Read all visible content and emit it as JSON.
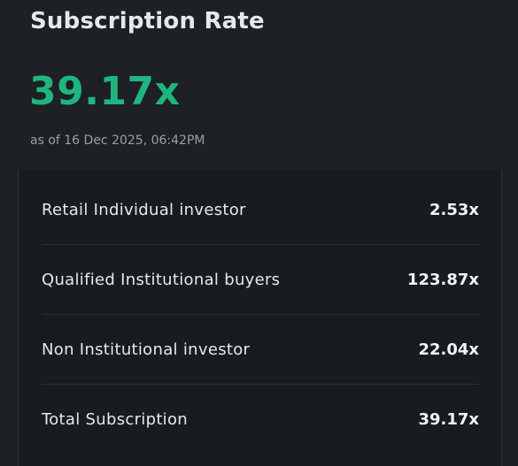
{
  "header": {
    "title": "Subscription Rate",
    "rate": "39.17x",
    "as_of": "as of 16 Dec 2025, 06:42PM"
  },
  "rows": [
    {
      "label": "Retail Individual investor",
      "value": "2.53x"
    },
    {
      "label": "Qualified Institutional buyers",
      "value": "123.87x"
    },
    {
      "label": "Non Institutional investor",
      "value": "22.04x"
    },
    {
      "label": "Total Subscription",
      "value": "39.17x"
    }
  ],
  "colors": {
    "accent": "#1fb57f",
    "background": "#1d2025"
  }
}
